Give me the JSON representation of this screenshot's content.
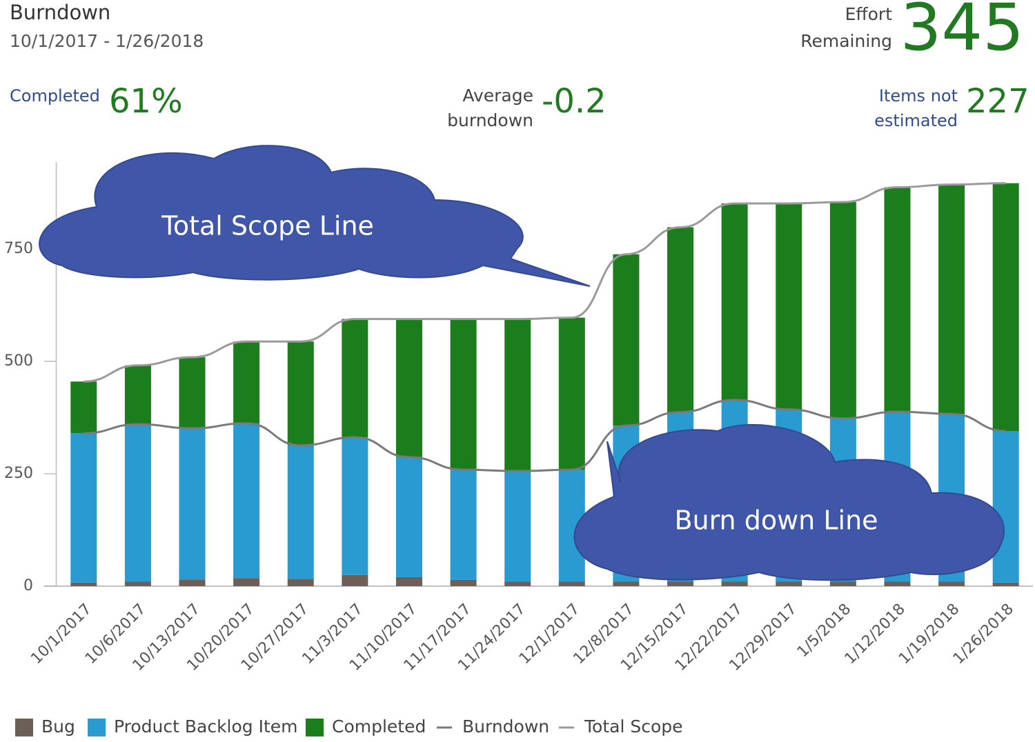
{
  "header": {
    "title": "Burndown",
    "date_range": "10/1/2017 - 1/26/2018",
    "effort_label": [
      "Effort",
      "Remaining"
    ],
    "effort_value": "345",
    "completed_label": "Completed",
    "completed_value": "61%",
    "average_label": [
      "Average",
      "burndown"
    ],
    "average_value": "-0.2",
    "not_estimated_label": [
      "Items not",
      "estimated"
    ],
    "not_estimated_value": "227"
  },
  "chart_data": {
    "type": "bar",
    "categories": [
      "10/1/2017",
      "10/6/2017",
      "10/13/2017",
      "10/20/2017",
      "10/27/2017",
      "11/3/2017",
      "11/10/2017",
      "11/17/2017",
      "11/24/2017",
      "12/1/2017",
      "12/8/2017",
      "12/15/2017",
      "12/22/2017",
      "12/29/2017",
      "1/5/2018",
      "1/12/2018",
      "1/19/2018",
      "1/26/2018"
    ],
    "series": [
      {
        "name": "Bug",
        "mark": "bar",
        "color": "#6b5f58",
        "values": [
          8,
          10,
          15,
          18,
          16,
          25,
          20,
          14,
          10,
          10,
          10,
          10,
          10,
          10,
          10,
          10,
          10,
          8
        ]
      },
      {
        "name": "Product Backlog Item",
        "mark": "bar",
        "color": "#2a9bd0",
        "values": [
          332,
          350,
          336,
          344,
          297,
          306,
          267,
          245,
          246,
          249,
          347,
          377,
          404,
          383,
          363,
          378,
          373,
          337
        ]
      },
      {
        "name": "Completed",
        "mark": "bar",
        "color": "#1b7d1b",
        "values": [
          115,
          131,
          158,
          182,
          231,
          263,
          307,
          335,
          338,
          338,
          381,
          411,
          437,
          458,
          481,
          499,
          510,
          551
        ]
      },
      {
        "name": "Burndown",
        "mark": "line",
        "color": "#7a7a7a",
        "values": [
          340,
          360,
          351,
          362,
          313,
          331,
          287,
          259,
          256,
          259,
          357,
          387,
          414,
          393,
          373,
          388,
          383,
          345
        ]
      },
      {
        "name": "Total Scope",
        "mark": "line",
        "color": "#9a9a9a",
        "values": [
          455,
          491,
          509,
          544,
          544,
          594,
          594,
          594,
          594,
          597,
          738,
          798,
          851,
          851,
          854,
          887,
          893,
          896
        ]
      }
    ],
    "ylim": [
      0,
      943
    ],
    "yticks": [
      0,
      250,
      500,
      750
    ],
    "annotations": [
      "Total Scope Line",
      "Burn down Line"
    ]
  }
}
